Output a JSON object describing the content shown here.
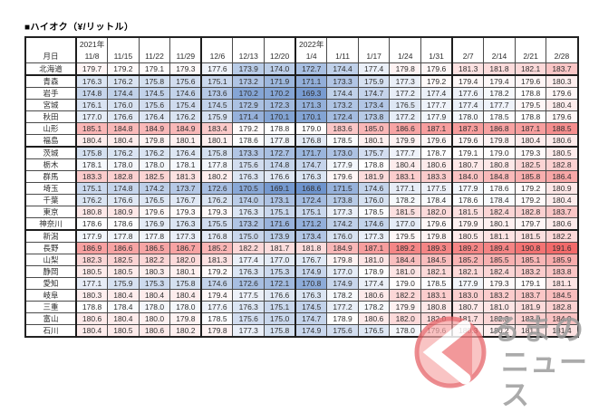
{
  "title": "■ハイオク（¥/リットル）",
  "heatmap": {
    "min": 168.6,
    "mid": 178.8,
    "max": 191.6,
    "low_color": "#6e94cd",
    "mid_color": "#ffffff",
    "high_color": "#f26a6a"
  },
  "table": {
    "corner_label": "月日",
    "year_labels": {
      "0": "2021年",
      "7": "2022年"
    },
    "columns": [
      "11/8",
      "11/15",
      "11/22",
      "11/29",
      "12/6",
      "12/13",
      "12/20",
      "1/4",
      "1/11",
      "1/17",
      "1/24",
      "1/31",
      "2/7",
      "2/14",
      "2/21",
      "2/28"
    ],
    "month_start_columns": [
      0,
      4,
      7,
      12
    ],
    "region_end_rows": [
      0,
      6,
      13
    ],
    "rows": [
      {
        "label": "北海道",
        "values": [
          179.7,
          179.2,
          179.1,
          179.3,
          177.6,
          173.9,
          174.0,
          172.7,
          174.4,
          177.4,
          179.8,
          179.6,
          181.3,
          181.8,
          182.1,
          183.7
        ]
      },
      {
        "label": "青森",
        "values": [
          176.3,
          176.2,
          175.8,
          175.6,
          175.1,
          173.2,
          171.9,
          171.1,
          173.3,
          175.9,
          177.3,
          179.2,
          179.4,
          179.4,
          179.6,
          180.3
        ]
      },
      {
        "label": "岩手",
        "values": [
          174.8,
          174.4,
          174.5,
          174.6,
          173.6,
          170.2,
          170.2,
          169.3,
          174.4,
          174.7,
          177.2,
          177.4,
          177.6,
          178.2,
          178.8,
          179.6
        ]
      },
      {
        "label": "宮城",
        "values": [
          176.1,
          176.0,
          175.6,
          175.4,
          174.5,
          172.9,
          172.3,
          171.3,
          173.2,
          173.4,
          176.5,
          177.7,
          177.4,
          177.7,
          179.5,
          180.4
        ]
      },
      {
        "label": "秋田",
        "values": [
          177.0,
          176.6,
          176.4,
          176.2,
          175.9,
          171.4,
          170.1,
          170.1,
          172.4,
          173.8,
          177.2,
          177.9,
          178.0,
          178.5,
          178.8,
          179.6
        ]
      },
      {
        "label": "山形",
        "values": [
          185.1,
          184.8,
          184.9,
          184.9,
          183.4,
          179.2,
          178.8,
          179.0,
          183.6,
          185.0,
          186.6,
          187.1,
          187.3,
          186.8,
          187.1,
          188.5
        ]
      },
      {
        "label": "福島",
        "values": [
          180.4,
          180.4,
          179.8,
          180.1,
          180.1,
          178.6,
          177.8,
          176.8,
          178.5,
          180.1,
          179.9,
          179.6,
          179.6,
          179.8,
          180.4,
          180.6
        ]
      },
      {
        "label": "茨城",
        "values": [
          175.8,
          176.2,
          176.2,
          176.4,
          175.8,
          173.3,
          172.7,
          171.7,
          173.0,
          175.7,
          177.7,
          178.7,
          179.1,
          179.0,
          179.3,
          180.5
        ]
      },
      {
        "label": "栃木",
        "values": [
          178.1,
          178.0,
          178.0,
          178.1,
          177.8,
          175.6,
          174.8,
          174.7,
          177.9,
          178.8,
          180.4,
          180.6,
          180.7,
          180.8,
          182.5,
          182.8
        ]
      },
      {
        "label": "群馬",
        "values": [
          183.3,
          182.8,
          182.5,
          181.3,
          180.2,
          176.3,
          176.6,
          176.3,
          179.6,
          181.9,
          183.1,
          183.3,
          184.0,
          184.8,
          185.8,
          186.4
        ]
      },
      {
        "label": "埼玉",
        "values": [
          175.1,
          174.8,
          174.2,
          173.7,
          172.6,
          170.5,
          169.1,
          168.6,
          171.5,
          174.6,
          177.1,
          177.5,
          177.9,
          178.6,
          179.2,
          180.9
        ]
      },
      {
        "label": "千葉",
        "values": [
          176.2,
          176.6,
          176.5,
          176.7,
          176.2,
          174.0,
          173.1,
          172.4,
          173.8,
          176.0,
          178.2,
          178.4,
          178.6,
          178.4,
          179.2,
          180.4
        ]
      },
      {
        "label": "東京",
        "values": [
          180.8,
          180.9,
          179.6,
          179.3,
          179.3,
          176.3,
          175.1,
          175.1,
          177.3,
          178.5,
          181.5,
          182.0,
          181.5,
          182.4,
          182.8,
          183.7
        ]
      },
      {
        "label": "神奈川",
        "values": [
          178.6,
          178.6,
          176.9,
          176.3,
          175.5,
          173.2,
          171.6,
          171.2,
          174.2,
          174.6,
          177.0,
          179.6,
          179.9,
          180.1,
          179.7,
          180.6
        ]
      },
      {
        "label": "新潟",
        "values": [
          177.9,
          177.8,
          177.8,
          177.3,
          176.8,
          175.0,
          173.9,
          173.4,
          176.0,
          177.3,
          179.5,
          179.8,
          180.5,
          181.1,
          181.5,
          182.2
        ]
      },
      {
        "label": "長野",
        "values": [
          186.9,
          186.6,
          186.5,
          186.7,
          185.2,
          182.2,
          181.7,
          181.8,
          184.9,
          187.1,
          189.2,
          189.3,
          189.2,
          189.4,
          190.8,
          191.6
        ]
      },
      {
        "label": "山梨",
        "values": [
          182.3,
          182.5,
          182.2,
          182.0,
          181.3,
          177.4,
          177.0,
          176.7,
          179.8,
          181.0,
          184.4,
          184.5,
          185.2,
          185.5,
          185.1,
          185.9
        ]
      },
      {
        "label": "静岡",
        "values": [
          180.5,
          180.5,
          180.3,
          180.1,
          179.2,
          176.3,
          175.3,
          174.9,
          177.0,
          178.9,
          181.0,
          182.1,
          182.1,
          182.4,
          183.2,
          183.8
        ]
      },
      {
        "label": "愛知",
        "values": [
          177.1,
          175.9,
          175.3,
          175.8,
          174.6,
          172.6,
          172.1,
          170.8,
          174.9,
          177.4,
          179.0,
          178.5,
          177.9,
          179.3,
          179.1,
          181.1
        ]
      },
      {
        "label": "岐阜",
        "values": [
          180.3,
          180.4,
          180.4,
          180.4,
          179.4,
          177.5,
          176.6,
          176.3,
          178.2,
          180.6,
          182.2,
          183.1,
          183.0,
          183.2,
          183.7,
          184.5
        ]
      },
      {
        "label": "三重",
        "values": [
          178.8,
          178.4,
          178.0,
          178.0,
          177.6,
          176.3,
          175.1,
          174.5,
          177.2,
          178.2,
          179.9,
          180.8,
          180.7,
          181.0,
          181.9,
          182.8
        ]
      },
      {
        "label": "富山",
        "values": [
          180.6,
          180.4,
          180.0,
          179.8,
          178.5,
          175.6,
          175.0,
          174.7,
          178.9,
          180.6,
          182.0,
          182.0,
          181.7,
          182.3,
          183.0,
          184.0
        ]
      },
      {
        "label": "石川",
        "values": [
          180.4,
          180.5,
          180.6,
          180.2,
          179.8,
          177.3,
          175.8,
          174.9,
          175.6,
          176.5,
          178.0,
          179.6,
          180.3,
          180.2,
          181.1,
          181.4
        ]
      }
    ]
  },
  "watermark": {
    "line1": "るまの",
    "line2": "ニュース",
    "circle_stroke": "#e5676b",
    "circle_fill": "#f6a9a9",
    "wedge_fill": "#ee7e82",
    "text_color": "#9b9b9b"
  }
}
